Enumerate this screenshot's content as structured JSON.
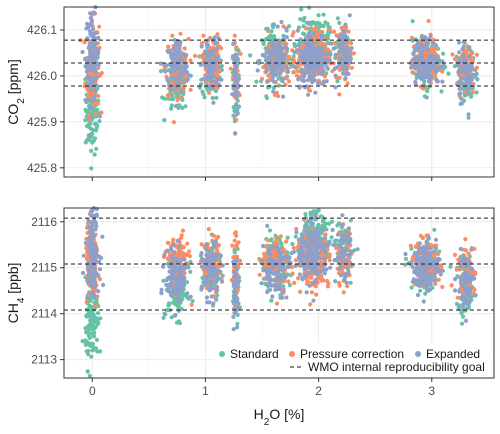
{
  "colors": {
    "standard": "#66c2a5",
    "pressure_correction": "#fc8d62",
    "expanded": "#8da0cb"
  },
  "chart_data": [
    {
      "type": "scatter",
      "panel": "top",
      "ylabel_main": "CO",
      "ylabel_sub": "2",
      "ylabel_unit": " [ppm]",
      "xlim": [
        -0.25,
        3.55
      ],
      "ylim": [
        425.78,
        426.15
      ],
      "xticks": [
        0,
        1,
        2,
        3
      ],
      "xtick_labels": [],
      "yticks": [
        425.8,
        425.9,
        426.0,
        426.1
      ],
      "ytick_labels": [
        "425.8",
        "425.9",
        "426.0",
        "426.1"
      ],
      "reference_lines": [
        426.078,
        426.028,
        425.978
      ],
      "clusters": [
        {
          "x": 0.0,
          "xspread": 0.06,
          "n": 120,
          "centers": {
            "standard": 425.93,
            "pressure_correction": 426.02,
            "expanded": 426.04
          },
          "spread": 0.05
        },
        {
          "x": 0.75,
          "xspread": 0.1,
          "n": 110,
          "centers": {
            "standard": 425.98,
            "pressure_correction": 426.02,
            "expanded": 426.02
          },
          "spread": 0.03
        },
        {
          "x": 1.05,
          "xspread": 0.08,
          "n": 80,
          "centers": {
            "standard": 426.01,
            "pressure_correction": 426.03,
            "expanded": 426.02
          },
          "spread": 0.03
        },
        {
          "x": 1.27,
          "xspread": 0.03,
          "n": 40,
          "centers": {
            "standard": 425.99,
            "pressure_correction": 426.0,
            "expanded": 425.98
          },
          "spread": 0.04
        },
        {
          "x": 1.62,
          "xspread": 0.12,
          "n": 100,
          "centers": {
            "standard": 426.04,
            "pressure_correction": 426.03,
            "expanded": 426.03
          },
          "spread": 0.03
        },
        {
          "x": 1.95,
          "xspread": 0.14,
          "n": 180,
          "centers": {
            "standard": 426.07,
            "pressure_correction": 426.04,
            "expanded": 426.04
          },
          "spread": 0.03
        },
        {
          "x": 2.22,
          "xspread": 0.07,
          "n": 60,
          "centers": {
            "standard": 426.06,
            "pressure_correction": 426.05,
            "expanded": 426.05
          },
          "spread": 0.03
        },
        {
          "x": 2.95,
          "xspread": 0.12,
          "n": 140,
          "centers": {
            "standard": 426.03,
            "pressure_correction": 426.03,
            "expanded": 426.03
          },
          "spread": 0.025
        },
        {
          "x": 3.3,
          "xspread": 0.08,
          "n": 70,
          "centers": {
            "standard": 426.0,
            "pressure_correction": 426.02,
            "expanded": 426.01
          },
          "spread": 0.03
        }
      ]
    },
    {
      "type": "scatter",
      "panel": "bottom",
      "ylabel_main": "CH",
      "ylabel_sub": "4",
      "ylabel_unit": " [ppb]",
      "xlabel_main": "H",
      "xlabel_sub": "2",
      "xlabel_unit": "O [%]",
      "xlim": [
        -0.25,
        3.55
      ],
      "ylim": [
        2112.6,
        2116.3
      ],
      "xticks": [
        0,
        1,
        2,
        3
      ],
      "xtick_labels": [
        "0",
        "1",
        "2",
        "3"
      ],
      "yticks": [
        2113,
        2114,
        2115,
        2116
      ],
      "ytick_labels": [
        "2113",
        "2114",
        "2115",
        "2116"
      ],
      "reference_lines": [
        2116.08,
        2115.08,
        2114.08
      ],
      "clusters": [
        {
          "x": 0.0,
          "xspread": 0.06,
          "n": 120,
          "centers": {
            "standard": 2113.8,
            "pressure_correction": 2115.05,
            "expanded": 2115.4
          },
          "spread": 0.45
        },
        {
          "x": 0.75,
          "xspread": 0.1,
          "n": 110,
          "centers": {
            "standard": 2114.5,
            "pressure_correction": 2115.1,
            "expanded": 2114.8
          },
          "spread": 0.3
        },
        {
          "x": 1.05,
          "xspread": 0.08,
          "n": 80,
          "centers": {
            "standard": 2114.9,
            "pressure_correction": 2115.1,
            "expanded": 2114.9
          },
          "spread": 0.3
        },
        {
          "x": 1.27,
          "xspread": 0.03,
          "n": 40,
          "centers": {
            "standard": 2114.7,
            "pressure_correction": 2115.0,
            "expanded": 2114.6
          },
          "spread": 0.4
        },
        {
          "x": 1.62,
          "xspread": 0.12,
          "n": 100,
          "centers": {
            "standard": 2115.1,
            "pressure_correction": 2115.1,
            "expanded": 2115.0
          },
          "spread": 0.3
        },
        {
          "x": 1.95,
          "xspread": 0.14,
          "n": 180,
          "centers": {
            "standard": 2115.6,
            "pressure_correction": 2115.2,
            "expanded": 2115.3
          },
          "spread": 0.3
        },
        {
          "x": 2.22,
          "xspread": 0.07,
          "n": 60,
          "centers": {
            "standard": 2115.4,
            "pressure_correction": 2115.2,
            "expanded": 2115.3
          },
          "spread": 0.3
        },
        {
          "x": 2.95,
          "xspread": 0.12,
          "n": 140,
          "centers": {
            "standard": 2115.0,
            "pressure_correction": 2115.1,
            "expanded": 2115.0
          },
          "spread": 0.25
        },
        {
          "x": 3.3,
          "xspread": 0.08,
          "n": 70,
          "centers": {
            "standard": 2114.5,
            "pressure_correction": 2114.9,
            "expanded": 2114.7
          },
          "spread": 0.3
        }
      ]
    }
  ],
  "legend": {
    "series": [
      {
        "key": "standard",
        "label": "Standard"
      },
      {
        "key": "pressure_correction",
        "label": "Pressure correction"
      },
      {
        "key": "expanded",
        "label": "Expanded"
      }
    ],
    "reference_label": "WMO internal reproducibility goal",
    "placement": "bottom-right"
  }
}
